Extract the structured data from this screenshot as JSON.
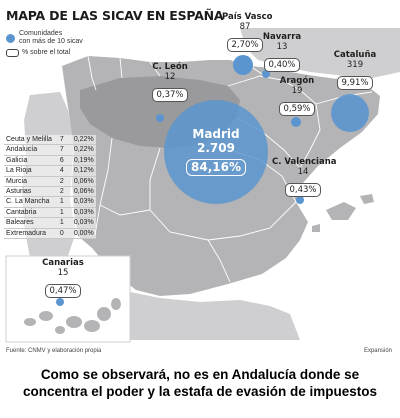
{
  "title": "MAPA DE LAS SICAV EN ESPAÑA",
  "legend": {
    "circle_label_1": "Comunidades",
    "circle_label_2": "con más de 10 sicav",
    "percent_label": "% sobre el total"
  },
  "regions": {
    "madrid": {
      "name": "Madrid",
      "count": "2.709",
      "percent": "84,16%"
    },
    "pais_vasco": {
      "name": "País Vasco",
      "count": "87",
      "percent": "2,70%"
    },
    "navarra": {
      "name": "Navarra",
      "count": "13",
      "percent": "0,40%"
    },
    "cataluna": {
      "name": "Cataluña",
      "count": "319",
      "percent": "9,91%"
    },
    "castilla_leon": {
      "name": "C. León",
      "count": "12",
      "percent": "0,37%"
    },
    "aragon": {
      "name": "Aragón",
      "count": "19",
      "percent": "0,59%"
    },
    "valenciana": {
      "name": "C. Valenciana",
      "count": "14",
      "percent": "0,43%"
    },
    "canarias": {
      "name": "Canarias",
      "count": "15",
      "percent": "0,47%"
    }
  },
  "small_regions": [
    {
      "name": "Ceuta y Melilla",
      "count": "7",
      "percent": "0,22%"
    },
    {
      "name": "Andalucía",
      "count": "7",
      "percent": "0,22%"
    },
    {
      "name": "Galicia",
      "count": "6",
      "percent": "0,19%"
    },
    {
      "name": "La Rioja",
      "count": "4",
      "percent": "0,12%"
    },
    {
      "name": "Murcia",
      "count": "2",
      "percent": "0,06%"
    },
    {
      "name": "Asturias",
      "count": "2",
      "percent": "0,06%"
    },
    {
      "name": "C. La Mancha",
      "count": "1",
      "percent": "0,03%"
    },
    {
      "name": "Cantabria",
      "count": "1",
      "percent": "0,03%"
    },
    {
      "name": "Baleares",
      "count": "1",
      "percent": "0,03%"
    },
    {
      "name": "Extremadura",
      "count": "0",
      "percent": "0,00%"
    }
  ],
  "source": "Fuente: CNMV y elaboración propia",
  "credit": "Expansión",
  "caption": {
    "line1": "Como se observará, no es en Andalucía donde se",
    "line2": "concentra el poder y la estafa de evasión de impuestos"
  },
  "colors": {
    "land": "#b4b4b6",
    "castilla_leon": "#9a9a9c",
    "circle": "#5b95cf"
  }
}
